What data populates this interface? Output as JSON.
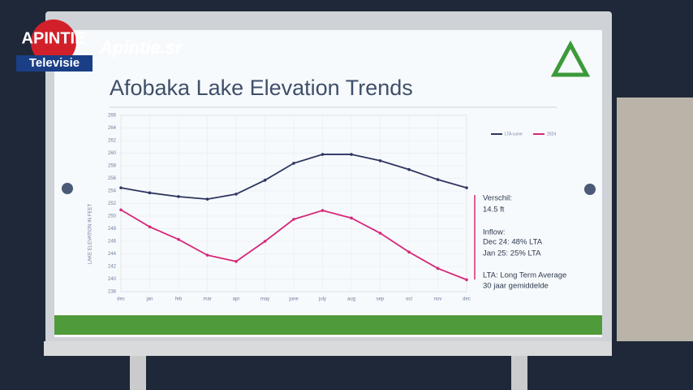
{
  "logo": {
    "name": "APINTIE",
    "sub": "Televisie",
    "site": "Apintie.sr"
  },
  "chart_data": {
    "type": "line",
    "title": "Afobaka Lake Elevation Trends",
    "y_label": "LAKE ELEVATION IN FEET",
    "categories": [
      "dec",
      "jan",
      "feb",
      "mar",
      "apr",
      "may",
      "june",
      "july",
      "aug",
      "sep",
      "oct",
      "nov",
      "dec"
    ],
    "series": [
      {
        "name": "LTA curve",
        "color": "#2e3560",
        "values": [
          254.5,
          253.7,
          253.1,
          252.7,
          253.5,
          255.7,
          258.4,
          259.8,
          259.8,
          258.8,
          257.4,
          255.8,
          254.5
        ]
      },
      {
        "name": "2024",
        "color": "#d6287a",
        "values": [
          251.0,
          248.3,
          246.3,
          243.8,
          242.8,
          246.0,
          249.5,
          250.9,
          249.7,
          247.3,
          244.3,
          241.7,
          239.9
        ]
      }
    ],
    "ylim": [
      238,
      266
    ],
    "yticks": [
      238,
      240,
      242,
      244,
      246,
      248,
      250,
      252,
      254,
      256,
      258,
      260,
      262,
      264,
      266
    ],
    "grid": true,
    "annotations": [
      "Verschil:",
      "14.5 ft",
      "Inflow:",
      "Dec 24: 48% LTA",
      "Jan 25: 25% LTA",
      "LTA: Long Term Average",
      "30 jaar gemiddelde"
    ]
  }
}
